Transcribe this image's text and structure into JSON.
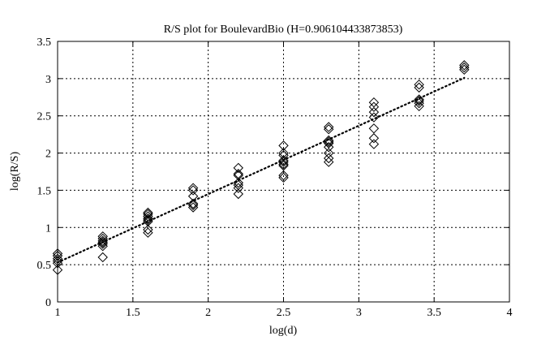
{
  "chart_data": {
    "type": "scatter",
    "title": "R/S plot for BoulevardBio (H=0.906104433873853)",
    "xlabel": "log(d)",
    "ylabel": "log(R/S)",
    "xlim": [
      1,
      4
    ],
    "ylim": [
      0,
      3.5
    ],
    "xticks": [
      1,
      1.5,
      2,
      2.5,
      3,
      3.5,
      4
    ],
    "xtick_labels": [
      "1",
      "1.5",
      "2",
      "2.5",
      "3",
      "3.5",
      "4"
    ],
    "yticks": [
      0,
      0.5,
      1,
      1.5,
      2,
      2.5,
      3,
      3.5
    ],
    "ytick_labels": [
      "0",
      "0.5",
      "1",
      "1.5",
      "2",
      "2.5",
      "3",
      "3.5"
    ],
    "grid": true,
    "marker": "diamond",
    "series": [
      {
        "points": [
          [
            1.0,
            0.43
          ],
          [
            1.0,
            0.52
          ],
          [
            1.0,
            0.55
          ],
          [
            1.0,
            0.58
          ],
          [
            1.0,
            0.62
          ],
          [
            1.0,
            0.65
          ],
          [
            1.3,
            0.6
          ],
          [
            1.3,
            0.75
          ],
          [
            1.3,
            0.78
          ],
          [
            1.3,
            0.8
          ],
          [
            1.3,
            0.82
          ],
          [
            1.3,
            0.85
          ],
          [
            1.3,
            0.88
          ],
          [
            1.6,
            0.93
          ],
          [
            1.6,
            0.97
          ],
          [
            1.6,
            1.08
          ],
          [
            1.6,
            1.1
          ],
          [
            1.6,
            1.12
          ],
          [
            1.6,
            1.15
          ],
          [
            1.6,
            1.18
          ],
          [
            1.6,
            1.2
          ],
          [
            1.9,
            1.27
          ],
          [
            1.9,
            1.3
          ],
          [
            1.9,
            1.32
          ],
          [
            1.9,
            1.42
          ],
          [
            1.9,
            1.5
          ],
          [
            1.9,
            1.53
          ],
          [
            2.2,
            1.45
          ],
          [
            2.2,
            1.53
          ],
          [
            2.2,
            1.57
          ],
          [
            2.2,
            1.6
          ],
          [
            2.2,
            1.7
          ],
          [
            2.2,
            1.72
          ],
          [
            2.2,
            1.8
          ],
          [
            2.5,
            1.67
          ],
          [
            2.5,
            1.7
          ],
          [
            2.5,
            1.83
          ],
          [
            2.5,
            1.85
          ],
          [
            2.5,
            1.88
          ],
          [
            2.5,
            1.9
          ],
          [
            2.5,
            1.97
          ],
          [
            2.5,
            2.0
          ],
          [
            2.5,
            2.1
          ],
          [
            2.8,
            1.88
          ],
          [
            2.8,
            1.93
          ],
          [
            2.8,
            2.0
          ],
          [
            2.8,
            2.08
          ],
          [
            2.8,
            2.13
          ],
          [
            2.8,
            2.15
          ],
          [
            2.8,
            2.17
          ],
          [
            2.8,
            2.32
          ],
          [
            2.8,
            2.35
          ],
          [
            3.1,
            2.12
          ],
          [
            3.1,
            2.2
          ],
          [
            3.1,
            2.33
          ],
          [
            3.1,
            2.48
          ],
          [
            3.1,
            2.55
          ],
          [
            3.1,
            2.62
          ],
          [
            3.1,
            2.68
          ],
          [
            3.4,
            2.63
          ],
          [
            3.4,
            2.67
          ],
          [
            3.4,
            2.7
          ],
          [
            3.4,
            2.72
          ],
          [
            3.4,
            2.88
          ],
          [
            3.4,
            2.92
          ],
          [
            3.7,
            3.12
          ],
          [
            3.7,
            3.15
          ],
          [
            3.7,
            3.18
          ]
        ]
      }
    ],
    "fit_line": {
      "style": "dotted",
      "x": [
        1.0,
        3.7
      ],
      "y": [
        0.53,
        3.01
      ]
    }
  }
}
